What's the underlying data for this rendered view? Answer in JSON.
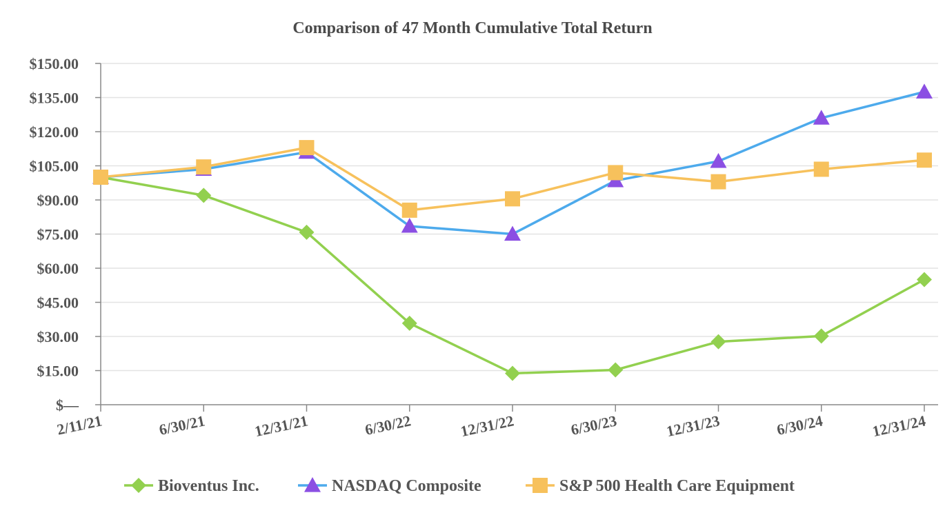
{
  "chart_data": {
    "type": "line",
    "title": "Comparison of 47 Month Cumulative Total Return",
    "categories": [
      "2/11/21",
      "6/30/21",
      "12/31/21",
      "6/30/22",
      "12/31/22",
      "6/30/23",
      "12/31/23",
      "6/30/24",
      "12/31/24"
    ],
    "ylim": [
      0,
      150
    ],
    "yticks": [
      0,
      15,
      30,
      45,
      60,
      75,
      90,
      105,
      120,
      135,
      150
    ],
    "ytick_labels": [
      "$—",
      "$15.00",
      "$30.00",
      "$45.00",
      "$60.00",
      "$75.00",
      "$90.00",
      "$105.00",
      "$120.00",
      "$135.00",
      "$150.00"
    ],
    "grid": true,
    "legend_position": "bottom",
    "series": [
      {
        "name": "Bioventus Inc.",
        "color": "#92d04f",
        "marker": "diamond",
        "values": [
          100.0,
          92.0,
          75.8,
          35.8,
          13.8,
          15.3,
          27.7,
          30.2,
          55.0
        ]
      },
      {
        "name": "NASDAQ Composite",
        "color": "#4daaec",
        "marker": "triangle",
        "marker_color": "#8b4fe3",
        "values": [
          100.0,
          103.5,
          111.0,
          78.5,
          75.0,
          98.5,
          107.0,
          126.0,
          137.5
        ]
      },
      {
        "name": "S&P 500 Health Care Equipment",
        "color": "#f7c15c",
        "marker": "square",
        "values": [
          100.0,
          104.5,
          113.0,
          85.5,
          90.5,
          102.0,
          98.0,
          103.5,
          107.5
        ]
      }
    ]
  }
}
